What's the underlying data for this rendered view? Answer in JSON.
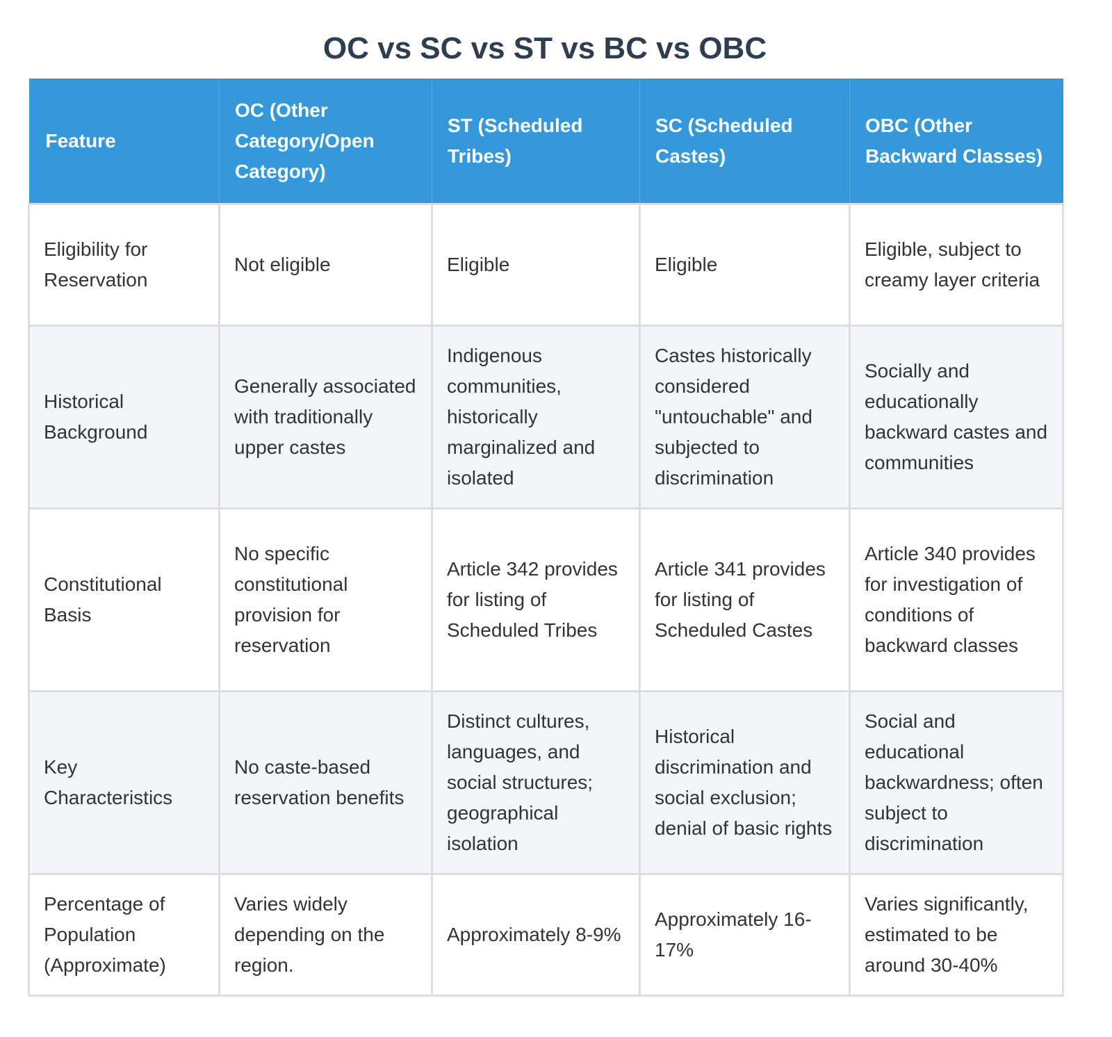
{
  "title": "OC vs SC vs ST vs BC vs OBC",
  "colors": {
    "header_bg": "#3498db",
    "header_text": "#ffffff",
    "title_text": "#2c3e50",
    "body_text": "#333333",
    "row_alt_bg": "#f2f5fa",
    "border": "#dddddd"
  },
  "table": {
    "headers": [
      "Feature",
      "OC (Other Category/Open Category)",
      "ST (Scheduled Tribes)",
      "SC (Scheduled Castes)",
      "OBC (Other Backward Classes)"
    ],
    "rows": [
      [
        "Eligibility for Reservation",
        "Not eligible",
        "Eligible",
        "Eligible",
        "Eligible, subject to creamy layer criteria"
      ],
      [
        "Historical Background",
        "Generally associated with traditionally upper castes",
        "Indigenous communities, historically marginalized and isolated",
        "Castes historically considered \"untouchable\" and subjected to discrimination",
        "Socially and educationally backward castes and communities"
      ],
      [
        "Constitutional Basis",
        "No specific constitutional provision for reservation",
        "Article 342 provides for listing of Scheduled Tribes",
        "Article 341 provides for listing of Scheduled Castes",
        "Article 340 provides for investigation of conditions of backward classes"
      ],
      [
        "Key Characteristics",
        "No caste-based reservation benefits",
        "Distinct cultures, languages, and social structures; geographical isolation",
        "Historical discrimination and social exclusion; denial of basic rights",
        "Social and educational backwardness; often subject to discrimination"
      ],
      [
        "Percentage of Population (Approximate)",
        "Varies widely depending on the region.",
        "Approximately 8-9%",
        "Approximately 16-17%",
        "Varies significantly, estimated to be around 30-40%"
      ]
    ]
  }
}
